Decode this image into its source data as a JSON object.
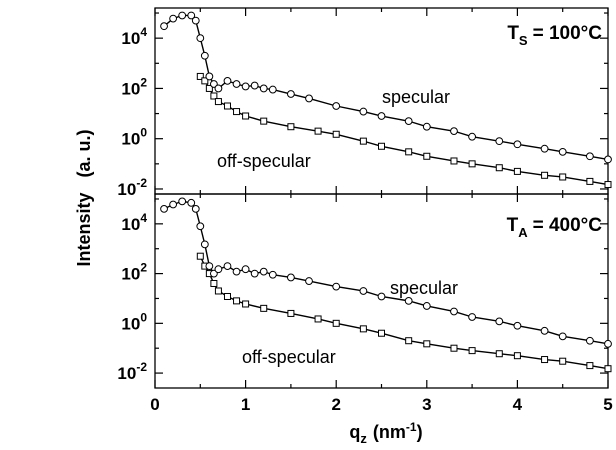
{
  "figure": {
    "ylabel": "Intensity",
    "ylabel_unit": "(a. u.)",
    "xlabel_symbol": "q",
    "xlabel_subscript": "z",
    "xlabel_unit_prefix": "(nm",
    "xlabel_unit_exponent": "-1",
    "xlabel_unit_suffix": ")"
  },
  "chart_data": [
    {
      "type": "scatter",
      "panel_label": {
        "symbol": "T",
        "subscript": "S",
        "value": "= 100°C"
      },
      "annotations": {
        "specular": "specular",
        "off_specular": "off-specular"
      },
      "x_ticks": [
        "0",
        "1",
        "2",
        "3",
        "4",
        "5"
      ],
      "y_ticks": [
        {
          "base": "10",
          "exp": "4"
        },
        {
          "base": "10",
          "exp": "2"
        },
        {
          "base": "10",
          "exp": "0"
        },
        {
          "base": "10",
          "exp": "-2"
        }
      ],
      "xlim": [
        0,
        5
      ],
      "ylim_log10": [
        -2.2,
        5.2
      ],
      "series": [
        {
          "name": "specular",
          "marker": "circle",
          "x": [
            0.1,
            0.2,
            0.3,
            0.4,
            0.45,
            0.5,
            0.55,
            0.6,
            0.65,
            0.7,
            0.8,
            0.9,
            1.0,
            1.1,
            1.2,
            1.3,
            1.5,
            1.7,
            2.0,
            2.3,
            2.5,
            2.8,
            3.0,
            3.3,
            3.5,
            3.8,
            4.0,
            4.3,
            4.5,
            4.8,
            5.0
          ],
          "y": [
            30000,
            60000,
            80000,
            80000,
            50000,
            10000,
            2000,
            300,
            150,
            100,
            200,
            150,
            120,
            130,
            100,
            90,
            60,
            40,
            20,
            12,
            8,
            5,
            3,
            2,
            1.2,
            0.8,
            0.6,
            0.4,
            0.3,
            0.2,
            0.15
          ]
        },
        {
          "name": "off-specular",
          "marker": "square",
          "x": [
            0.5,
            0.55,
            0.6,
            0.65,
            0.7,
            0.8,
            0.9,
            1.0,
            1.2,
            1.5,
            1.8,
            2.0,
            2.3,
            2.5,
            2.8,
            3.0,
            3.3,
            3.5,
            3.8,
            4.0,
            4.3,
            4.5,
            4.8,
            5.0
          ],
          "y": [
            300,
            200,
            100,
            50,
            30,
            20,
            12,
            8,
            5,
            3,
            2,
            1.5,
            0.8,
            0.5,
            0.3,
            0.2,
            0.13,
            0.1,
            0.07,
            0.05,
            0.035,
            0.03,
            0.02,
            0.015
          ]
        }
      ]
    },
    {
      "type": "scatter",
      "panel_label": {
        "symbol": "T",
        "subscript": "A",
        "value": "= 400°C"
      },
      "annotations": {
        "specular": "specular",
        "off_specular": "off-specular"
      },
      "x_ticks": [
        "0",
        "1",
        "2",
        "3",
        "4",
        "5"
      ],
      "y_ticks": [
        {
          "base": "10",
          "exp": "4"
        },
        {
          "base": "10",
          "exp": "2"
        },
        {
          "base": "10",
          "exp": "0"
        },
        {
          "base": "10",
          "exp": "-2"
        }
      ],
      "xlim": [
        0,
        5
      ],
      "ylim_log10": [
        -2.6,
        5.2
      ],
      "series": [
        {
          "name": "specular",
          "marker": "circle",
          "x": [
            0.1,
            0.2,
            0.3,
            0.4,
            0.45,
            0.5,
            0.55,
            0.6,
            0.65,
            0.7,
            0.8,
            0.9,
            1.0,
            1.1,
            1.2,
            1.3,
            1.5,
            1.7,
            2.0,
            2.3,
            2.5,
            2.8,
            3.0,
            3.3,
            3.5,
            3.8,
            4.0,
            4.3,
            4.5,
            4.8,
            5.0
          ],
          "y": [
            40000,
            60000,
            80000,
            70000,
            40000,
            8000,
            1500,
            200,
            100,
            150,
            200,
            120,
            150,
            100,
            120,
            90,
            70,
            50,
            30,
            20,
            12,
            8,
            5,
            3,
            1.8,
            1.2,
            0.8,
            0.5,
            0.3,
            0.2,
            0.15
          ]
        },
        {
          "name": "off-specular",
          "marker": "square",
          "x": [
            0.5,
            0.55,
            0.6,
            0.65,
            0.7,
            0.8,
            0.9,
            1.0,
            1.2,
            1.5,
            1.8,
            2.0,
            2.3,
            2.5,
            2.8,
            3.0,
            3.3,
            3.5,
            3.8,
            4.0,
            4.3,
            4.5,
            4.8,
            5.0
          ],
          "y": [
            500,
            200,
            100,
            40,
            20,
            12,
            8,
            6,
            4,
            2.5,
            1.5,
            1,
            0.6,
            0.4,
            0.2,
            0.15,
            0.1,
            0.08,
            0.06,
            0.05,
            0.035,
            0.03,
            0.02,
            0.015
          ]
        }
      ]
    }
  ]
}
